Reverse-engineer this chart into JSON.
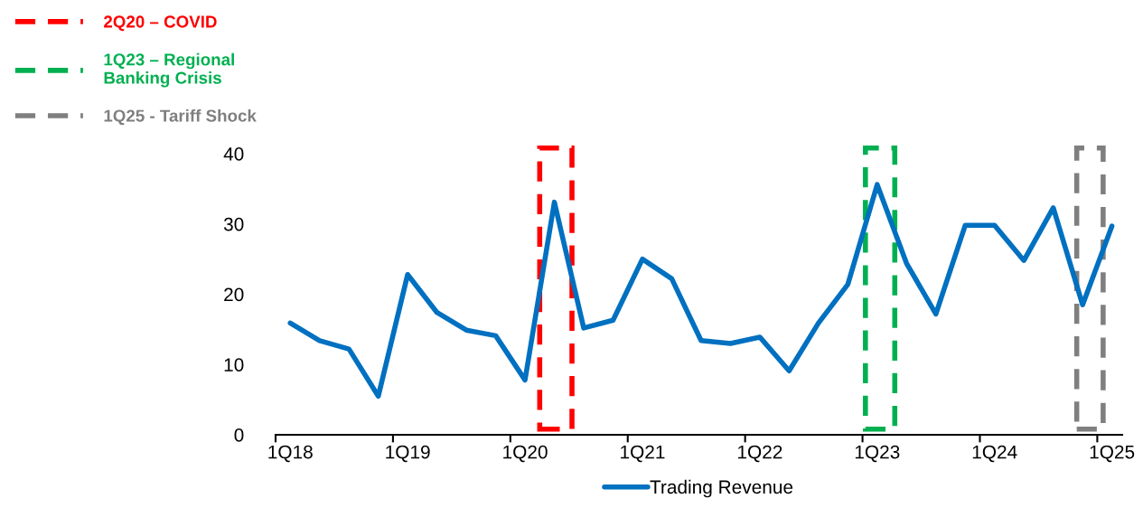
{
  "chart_data": {
    "type": "line",
    "categories": [
      "1Q18",
      null,
      null,
      null,
      "1Q19",
      null,
      null,
      null,
      "1Q20",
      null,
      null,
      null,
      "1Q21",
      null,
      null,
      null,
      "1Q22",
      null,
      null,
      null,
      "1Q23",
      null,
      null,
      null,
      "1Q24",
      null,
      null,
      null,
      "1Q25"
    ],
    "series": [
      {
        "name": "Trading Revenue",
        "color": "#0070c0",
        "values": [
          15.9,
          13.4,
          12.2,
          5.5,
          22.8,
          17.4,
          14.9,
          14.1,
          7.8,
          33.1,
          15.2,
          16.3,
          25.0,
          22.2,
          13.4,
          13.0,
          13.9,
          9.1,
          15.9,
          21.4,
          35.6,
          24.4,
          17.2,
          29.8,
          29.8,
          24.8,
          32.3,
          18.5,
          29.7
        ]
      }
    ],
    "ylim": [
      0,
      40
    ],
    "yticks": [
      0,
      10,
      20,
      30,
      40
    ],
    "annotations": [
      "2Q20 – COVID",
      "1Q23 – Regional\nBanking Crisis",
      "1Q25 - Tariff Shock"
    ],
    "grid": false,
    "legend": "bottom",
    "marker": "none",
    "line_style": "solid"
  }
}
